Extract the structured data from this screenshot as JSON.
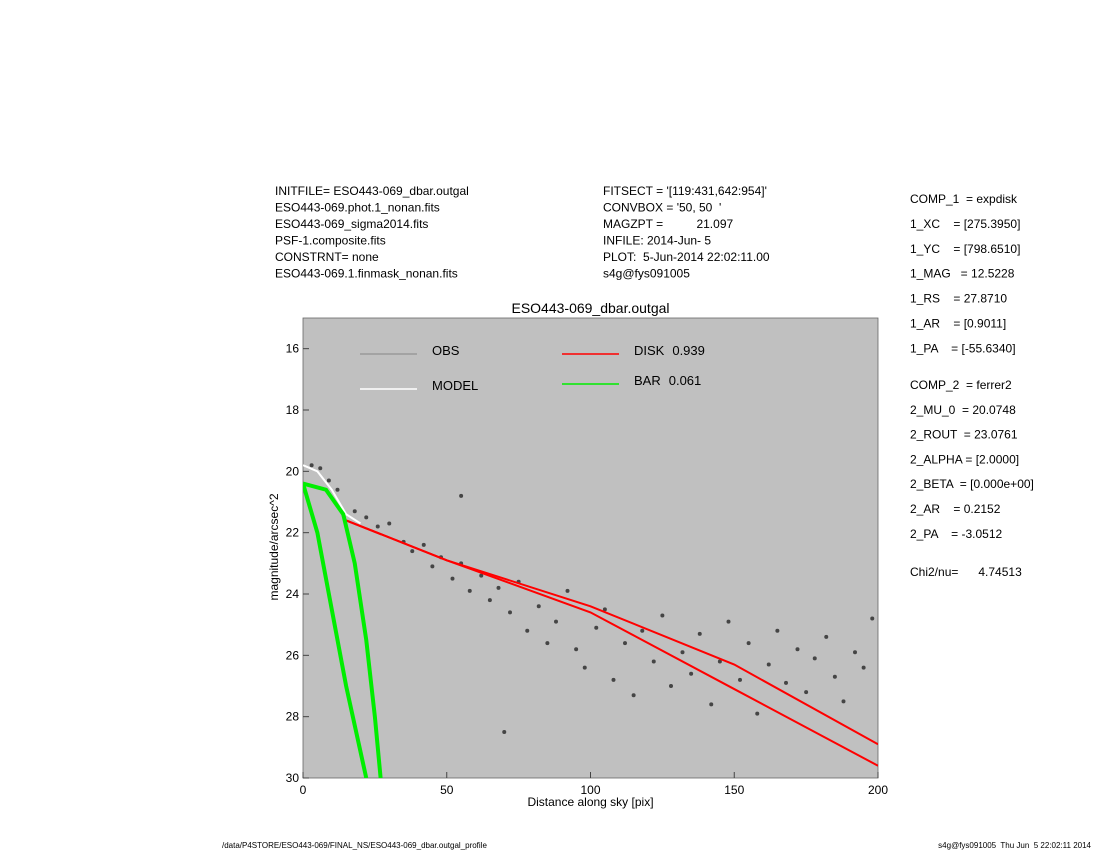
{
  "chart_data": {
    "type": "scatter",
    "title": "ESO443-069_dbar.outgal",
    "x_label": "Distance along sky [pix]",
    "y_label": "magnitude/arcsec^2",
    "xlim": [
      0,
      200
    ],
    "xticks": [
      0,
      50,
      100,
      150,
      200
    ],
    "ylim": [
      15,
      30
    ],
    "yticks": [
      16,
      18,
      20,
      22,
      24,
      26,
      28,
      30
    ],
    "y_inverted": true,
    "plot_background": "#c0c0c0",
    "series": [
      {
        "name": "OBS",
        "color": "#999999",
        "point_color": "#454545",
        "style": "points",
        "x": [
          3,
          6,
          9,
          12,
          18,
          22,
          26,
          30,
          35,
          38,
          42,
          45,
          48,
          52,
          55,
          58,
          62,
          65,
          68,
          72,
          75,
          78,
          82,
          85,
          88,
          92,
          95,
          98,
          102,
          105,
          108,
          112,
          115,
          118,
          122,
          125,
          128,
          132,
          135,
          138,
          142,
          145,
          148,
          152,
          155,
          158,
          162,
          165,
          168,
          172,
          175,
          178,
          182,
          185,
          188,
          192,
          195,
          198,
          55,
          70
        ],
        "values": [
          19.8,
          19.9,
          20.3,
          20.6,
          21.3,
          21.5,
          21.8,
          21.7,
          22.3,
          22.6,
          22.4,
          23.1,
          22.8,
          23.5,
          23.0,
          23.9,
          23.4,
          24.2,
          23.8,
          24.6,
          23.6,
          25.2,
          24.4,
          25.6,
          24.9,
          23.9,
          25.8,
          26.4,
          25.1,
          24.5,
          26.8,
          25.6,
          27.3,
          25.2,
          26.2,
          24.7,
          27.0,
          25.9,
          26.6,
          25.3,
          27.6,
          26.2,
          24.9,
          26.8,
          25.6,
          27.9,
          26.3,
          25.2,
          26.9,
          25.8,
          27.2,
          26.1,
          25.4,
          26.7,
          27.5,
          25.9,
          26.4,
          24.8,
          20.8,
          28.5
        ]
      },
      {
        "name": "MODEL",
        "color": "#ffffff",
        "style": "line",
        "x": [
          0,
          5,
          10,
          15,
          20
        ],
        "values": [
          19.8,
          20.0,
          20.6,
          21.4,
          21.7
        ]
      },
      {
        "name": "DISK",
        "color": "#ff0000",
        "fraction": 0.939,
        "style": "line",
        "x": [
          15,
          50,
          100,
          150,
          200
        ],
        "values": [
          21.6,
          22.9,
          24.4,
          26.3,
          28.9
        ]
      },
      {
        "name": "DISK",
        "color": "#ff0000",
        "style": "line",
        "x": [
          15,
          50,
          100,
          150,
          200
        ],
        "values": [
          21.6,
          22.9,
          24.6,
          27.1,
          29.6
        ]
      },
      {
        "name": "BAR",
        "color": "#00ee00",
        "fraction": 0.061,
        "style": "line",
        "x": [
          0,
          5,
          10,
          15,
          22
        ],
        "values": [
          20.4,
          22.0,
          24.5,
          27.0,
          30.0
        ]
      },
      {
        "name": "BAR",
        "color": "#00ee00",
        "style": "line",
        "x": [
          0,
          8,
          14,
          18,
          22,
          25,
          27
        ],
        "values": [
          20.4,
          20.6,
          21.4,
          23.0,
          25.5,
          28.0,
          30.0
        ]
      }
    ],
    "info_left": [
      "INITFILE= ESO443-069_dbar.outgal",
      "ESO443-069.phot.1_nonan.fits",
      "ESO443-069_sigma2014.fits",
      "PSF-1.composite.fits",
      "CONSTRNT= none",
      "ESO443-069.1.finmask_nonan.fits"
    ],
    "info_middle": [
      "FITSECT = '[119:431,642:954]'",
      "CONVBOX = '50, 50  '",
      "MAGZPT =          21.097",
      "INFILE: 2014-Jun- 5",
      "PLOT:  5-Jun-2014 22:02:11.00",
      "s4g@fys091005"
    ],
    "params_1": [
      "COMP_1  = expdisk",
      "1_XC    = [275.3950]",
      "1_YC    = [798.6510]",
      "1_MAG   = 12.5228",
      "1_RS    = 27.8710",
      "1_AR    = [0.9011]",
      "1_PA    = [-55.6340]"
    ],
    "params_2": [
      "COMP_2  = ferrer2",
      "2_MU_0  = 20.0748",
      "2_ROUT  = 23.0761",
      "2_ALPHA = [2.0000]",
      "2_BETA  = [0.000e+00]",
      "2_AR    = 0.2152",
      "2_PA    = -3.0512"
    ],
    "chi2": "Chi2/nu=      4.74513",
    "footer_left": "/data/P4STORE/ESO443-069/FINAL_NS/ESO443-069_dbar.outgal_profile",
    "footer_right": "s4g@fys091005  Thu Jun  5 22:02:11 2014"
  }
}
